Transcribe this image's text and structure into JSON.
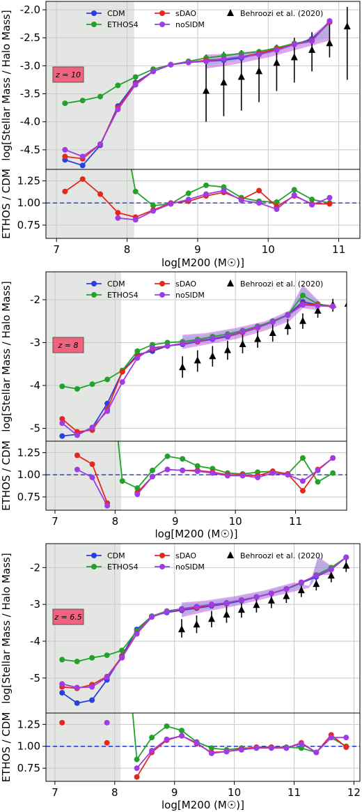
{
  "chart_data": [
    {
      "type": "line",
      "redshift_label": "z = 10",
      "ylabel": "log[Stellar Mass / Halo Mass]",
      "xlabel": "log[M200 (M☉)]",
      "xlim": [
        6.85,
        11.3
      ],
      "ylim": [
        -4.85,
        -1.85
      ],
      "xticks": [
        "7",
        "8",
        "9",
        "10",
        "11"
      ],
      "yticks": [
        "-4.5",
        "-4.0",
        "-3.5",
        "-3.0",
        "-2.5",
        "-2.0"
      ],
      "shaded_region_x": [
        6.85,
        8.1
      ],
      "legend": [
        "CDM",
        "ETHOS4",
        "sDAO",
        "noSIDM",
        "Behroozi et al. (2020)"
      ],
      "x": [
        7.12,
        7.37,
        7.62,
        7.87,
        8.12,
        8.37,
        8.62,
        8.87,
        9.12,
        9.37,
        9.62,
        9.87,
        10.12,
        10.37,
        10.62,
        10.87
      ],
      "series": [
        {
          "name": "CDM",
          "color": "#2b3fe0",
          "values": [
            -4.68,
            -4.78,
            -4.42,
            -3.72,
            -3.3,
            -3.1,
            -2.98,
            -2.94,
            -2.92,
            -2.9,
            -2.86,
            -2.78,
            -2.7,
            -2.62,
            -2.52,
            -2.22
          ]
        },
        {
          "name": "ETHOS4",
          "color": "#22a22a",
          "values": [
            -3.67,
            -3.62,
            -3.55,
            -3.35,
            -3.2,
            -3.06,
            -2.98,
            -2.92,
            -2.86,
            -2.82,
            -2.78,
            -2.75,
            -2.68,
            -2.6,
            -2.55,
            -2.2
          ]
        },
        {
          "name": "sDAO",
          "color": "#e5281e",
          "values": [
            -4.62,
            -4.66,
            -4.4,
            -3.75,
            -3.32,
            -3.1,
            -2.98,
            -2.94,
            -2.9,
            -2.88,
            -2.84,
            -2.78,
            -2.7,
            -2.62,
            -2.55,
            -2.22
          ]
        },
        {
          "name": "noSIDM",
          "color": "#a03ce6",
          "values": [
            -4.5,
            -4.62,
            -4.4,
            -3.78,
            -3.34,
            -3.1,
            -2.98,
            -2.94,
            -2.92,
            -2.88,
            -2.84,
            -2.8,
            -2.72,
            -2.62,
            -2.56,
            -2.2
          ]
        }
      ],
      "behroozi": {
        "x": [
          9.12,
          9.37,
          9.62,
          9.87,
          10.12,
          10.37,
          10.62,
          10.87,
          11.12
        ],
        "y": [
          -3.45,
          -3.3,
          -3.2,
          -3.1,
          -2.95,
          -2.85,
          -2.72,
          -2.6,
          -2.3
        ],
        "lo": [
          -4.0,
          -3.9,
          -3.8,
          -3.65,
          -3.45,
          -3.3,
          -3.1,
          -2.85,
          -3.25
        ],
        "hi": [
          -2.8,
          -2.75,
          -2.72,
          -2.7,
          -2.62,
          -2.5,
          -2.4,
          -2.25,
          -1.95
        ]
      },
      "band": {
        "x": [
          9.12,
          9.5,
          10.0,
          10.5,
          10.87
        ],
        "lo": [
          -3.05,
          -2.98,
          -2.85,
          -2.68,
          -2.55
        ],
        "hi": [
          -2.8,
          -2.78,
          -2.7,
          -2.58,
          -2.2
        ]
      },
      "ratio": {
        "ylabel": "ETHOS / CDM",
        "ylim": [
          0.6,
          1.38
        ],
        "yticks": [
          "0.75",
          "1.00",
          "1.25"
        ],
        "series": [
          {
            "name": "ETHOS4",
            "color": "#22a22a",
            "values": [
              null,
              null,
              null,
              null,
              1.13,
              0.97,
              0.99,
              1.11,
              1.2,
              1.18,
              1.06,
              1.02,
              1.01,
              1.15,
              1.04,
              1.0
            ]
          },
          {
            "name": "sDAO",
            "color": "#e5281e",
            "values": [
              1.13,
              1.27,
              1.1,
              0.89,
              0.84,
              0.92,
              1.0,
              1.02,
              1.08,
              1.12,
              1.04,
              1.14,
              0.96,
              1.08,
              0.99,
              0.99
            ]
          },
          {
            "name": "noSIDM",
            "color": "#a03ce6",
            "values": [
              null,
              null,
              null,
              0.83,
              0.81,
              0.91,
              0.99,
              1.04,
              1.1,
              1.14,
              1.03,
              1.0,
              0.93,
              1.09,
              0.98,
              1.06
            ]
          }
        ]
      }
    },
    {
      "type": "line",
      "redshift_label": "z = 8",
      "ylabel": "log[Stellar Mass / Halo Mass]",
      "xlabel": "log[M200 (M☉)]",
      "xlim": [
        6.85,
        11.85
      ],
      "ylim": [
        -5.3,
        -1.35
      ],
      "xticks": [
        "7",
        "8",
        "9",
        "10",
        "11"
      ],
      "yticks": [
        "-5",
        "-4",
        "-3",
        "-2"
      ],
      "shaded_region_x": [
        6.85,
        8.1
      ],
      "legend": [
        "CDM",
        "ETHOS4",
        "sDAO",
        "noSIDM",
        "Behroozi et al. (2020)"
      ],
      "x": [
        7.12,
        7.37,
        7.62,
        7.87,
        8.12,
        8.37,
        8.62,
        8.87,
        9.12,
        9.37,
        9.62,
        9.87,
        10.12,
        10.37,
        10.62,
        10.87,
        11.12,
        11.37,
        11.62
      ],
      "series": [
        {
          "name": "CDM",
          "color": "#2b3fe0",
          "values": [
            -5.18,
            -5.14,
            -4.98,
            -4.42,
            -3.68,
            -3.28,
            -3.2,
            -3.08,
            -3.04,
            -2.98,
            -2.92,
            -2.86,
            -2.76,
            -2.65,
            -2.5,
            -2.35,
            -2.05,
            -2.12,
            -2.15
          ]
        },
        {
          "name": "ETHOS4",
          "color": "#22a22a",
          "values": [
            -4.02,
            -4.08,
            -3.97,
            -3.86,
            -3.65,
            -3.2,
            -3.05,
            -3.0,
            -2.98,
            -2.93,
            -2.86,
            -2.8,
            -2.72,
            -2.62,
            -2.5,
            -2.35,
            -1.9,
            -2.1,
            -2.15
          ]
        },
        {
          "name": "sDAO",
          "color": "#e5281e",
          "values": [
            -4.78,
            -5.08,
            -5.04,
            -4.55,
            -3.68,
            -3.32,
            -3.15,
            -3.08,
            -3.02,
            -2.98,
            -2.9,
            -2.85,
            -2.76,
            -2.65,
            -2.52,
            -2.36,
            -2.1,
            -2.12,
            -2.15
          ]
        },
        {
          "name": "noSIDM",
          "color": "#a03ce6",
          "values": [
            -4.88,
            -5.16,
            -4.98,
            -4.6,
            -3.92,
            -3.36,
            -3.12,
            -3.08,
            -3.02,
            -2.96,
            -2.9,
            -2.84,
            -2.74,
            -2.64,
            -2.52,
            -2.36,
            -2.12,
            -2.14,
            -2.16
          ]
        }
      ],
      "behroozi": {
        "x": [
          9.12,
          9.37,
          9.62,
          9.87,
          10.12,
          10.37,
          10.62,
          10.87,
          11.12,
          11.37,
          11.62,
          11.87
        ],
        "y": [
          -3.58,
          -3.42,
          -3.32,
          -3.18,
          -3.04,
          -2.92,
          -2.78,
          -2.62,
          -2.5,
          -2.26,
          -2.12,
          -2.1
        ],
        "lo": [
          -3.82,
          -3.68,
          -3.56,
          -3.4,
          -3.25,
          -3.12,
          -2.98,
          -2.82,
          -2.68,
          -2.42,
          -2.28,
          -2.45
        ],
        "hi": [
          -3.32,
          -3.18,
          -3.08,
          -2.96,
          -2.82,
          -2.72,
          -2.58,
          -2.45,
          -2.32,
          -2.1,
          -1.98,
          -1.88
        ]
      },
      "band": {
        "x": [
          9.12,
          9.5,
          10.0,
          10.5,
          10.9,
          11.12,
          11.4
        ],
        "lo": [
          -3.15,
          -3.05,
          -2.92,
          -2.72,
          -2.5,
          -2.2,
          -2.25
        ],
        "hi": [
          -2.82,
          -2.78,
          -2.66,
          -2.5,
          -2.25,
          -1.65,
          -2.05
        ]
      },
      "ratio": {
        "ylabel": "ETHOS / CDM",
        "ylim": [
          0.6,
          1.38
        ],
        "yticks": [
          "0.75",
          "1.00",
          "1.25"
        ],
        "series": [
          {
            "name": "ETHOS4",
            "color": "#22a22a",
            "values": [
              null,
              null,
              null,
              null,
              0.93,
              0.85,
              1.05,
              1.21,
              1.18,
              1.1,
              1.07,
              1.02,
              1.01,
              1.03,
              1.04,
              1.01,
              1.19,
              0.92,
              1.02
            ]
          },
          {
            "name": "sDAO",
            "color": "#e5281e",
            "values": [
              null,
              1.22,
              1.12,
              0.68,
              null,
              0.8,
              0.98,
              1.06,
              1.05,
              1.05,
              1.03,
              1.0,
              1.0,
              0.99,
              1.04,
              1.01,
              0.82,
              1.06,
              1.19
            ]
          },
          {
            "name": "noSIDM",
            "color": "#a03ce6",
            "values": [
              null,
              1.06,
              0.97,
              0.65,
              null,
              0.78,
              0.98,
              1.06,
              1.05,
              1.04,
              1.02,
              0.99,
              0.99,
              0.97,
              1.02,
              1.0,
              0.93,
              1.05,
              1.19
            ]
          }
        ]
      }
    },
    {
      "type": "line",
      "redshift_label": "z = 6.5",
      "ylabel": "log[Stellar Mass / Halo Mass]",
      "xlabel": "log[M200 (M☉)]",
      "xlim": [
        6.85,
        12.1
      ],
      "ylim": [
        -5.95,
        -1.35
      ],
      "xticks": [
        "7",
        "8",
        "9",
        "10",
        "11",
        "12"
      ],
      "yticks": [
        "-5",
        "-4",
        "-3",
        "-2"
      ],
      "shaded_region_x": [
        6.85,
        8.1
      ],
      "legend": [
        "CDM",
        "ETHOS4",
        "sDAO",
        "noSIDM",
        "Behroozi et al. (2020)"
      ],
      "x": [
        7.12,
        7.37,
        7.62,
        7.87,
        8.12,
        8.37,
        8.62,
        8.87,
        9.12,
        9.37,
        9.62,
        9.87,
        10.12,
        10.37,
        10.62,
        10.87,
        11.12,
        11.37,
        11.62,
        11.87
      ],
      "series": [
        {
          "name": "CDM",
          "color": "#2b3fe0",
          "values": [
            -5.4,
            -5.68,
            -5.6,
            -5.05,
            -4.4,
            -3.68,
            -3.32,
            -3.22,
            -3.16,
            -3.1,
            -3.04,
            -2.98,
            -2.9,
            -2.8,
            -2.7,
            -2.58,
            -2.42,
            -2.25,
            -2.05,
            -1.72
          ]
        },
        {
          "name": "ETHOS4",
          "color": "#22a22a",
          "values": [
            -4.5,
            -4.55,
            -4.45,
            -4.38,
            -4.25,
            -3.72,
            -3.32,
            -3.18,
            -3.12,
            -3.06,
            -3.02,
            -2.96,
            -2.88,
            -2.8,
            -2.7,
            -2.58,
            -2.42,
            -2.2,
            -2.0,
            -1.72
          ]
        },
        {
          "name": "sDAO",
          "color": "#e5281e",
          "values": [
            -5.24,
            -5.28,
            -5.18,
            -4.96,
            -4.42,
            -3.78,
            -3.34,
            -3.2,
            -3.14,
            -3.08,
            -3.02,
            -2.96,
            -2.88,
            -2.8,
            -2.7,
            -2.58,
            -2.4,
            -2.22,
            -2.05,
            -1.72
          ]
        },
        {
          "name": "noSIDM",
          "color": "#a03ce6",
          "values": [
            -5.16,
            -5.26,
            -5.24,
            -4.98,
            -4.45,
            -3.8,
            -3.34,
            -3.2,
            -3.12,
            -3.06,
            -3.0,
            -2.96,
            -2.88,
            -2.8,
            -2.7,
            -2.58,
            -2.4,
            -2.22,
            -2.05,
            -1.72
          ]
        }
      ],
      "behroozi": {
        "x": [
          9.12,
          9.37,
          9.62,
          9.87,
          10.12,
          10.37,
          10.62,
          10.87,
          11.12,
          11.37,
          11.62,
          11.87
        ],
        "y": [
          -3.68,
          -3.55,
          -3.4,
          -3.28,
          -3.15,
          -3.02,
          -2.9,
          -2.78,
          -2.62,
          -2.45,
          -2.22,
          -1.95
        ],
        "lo": [
          -3.9,
          -3.78,
          -3.62,
          -3.5,
          -3.36,
          -3.22,
          -3.1,
          -2.96,
          -2.8,
          -2.62,
          -2.4,
          -2.12
        ],
        "hi": [
          -3.4,
          -3.3,
          -3.18,
          -3.06,
          -2.95,
          -2.82,
          -2.7,
          -2.58,
          -2.45,
          -2.28,
          -2.05,
          -1.78
        ]
      },
      "band": {
        "x": [
          9.12,
          9.5,
          10.0,
          10.5,
          11.0,
          11.25,
          11.4,
          11.62
        ],
        "lo": [
          -3.35,
          -3.2,
          -3.05,
          -2.85,
          -2.65,
          -2.55,
          -2.2,
          -2.2
        ],
        "hi": [
          -2.95,
          -2.9,
          -2.78,
          -2.62,
          -2.4,
          -2.5,
          -1.7,
          -1.95
        ]
      },
      "ratio": {
        "ylabel": "ETHOS / CDM",
        "ylim": [
          0.6,
          1.38
        ],
        "yticks": [
          "0.75",
          "1.00",
          "1.25"
        ],
        "series": [
          {
            "name": "ETHOS4",
            "color": "#22a22a",
            "values": [
              null,
              null,
              null,
              null,
              null,
              0.85,
              1.1,
              1.23,
              1.18,
              1.05,
              0.98,
              0.96,
              0.98,
              0.98,
              0.99,
              0.99,
              0.98,
              0.93,
              1.1,
              1.0
            ]
          },
          {
            "name": "sDAO",
            "color": "#e5281e",
            "values": [
              1.27,
              null,
              null,
              1.04,
              null,
              0.65,
              0.93,
              1.07,
              1.12,
              1.03,
              0.93,
              0.94,
              0.97,
              0.99,
              0.99,
              0.98,
              1.04,
              0.93,
              1.13,
              0.99
            ]
          },
          {
            "name": "noSIDM",
            "color": "#a03ce6",
            "values": [
              null,
              null,
              null,
              1.27,
              null,
              0.75,
              0.95,
              1.08,
              1.12,
              1.04,
              0.92,
              0.94,
              0.96,
              0.98,
              0.98,
              0.98,
              1.03,
              0.93,
              1.1,
              1.1
            ]
          }
        ]
      }
    }
  ]
}
